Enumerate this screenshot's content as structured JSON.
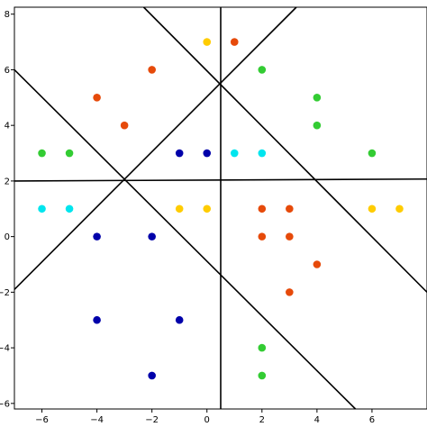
{
  "chart_data": {
    "type": "scatter",
    "title": "",
    "xlabel": "",
    "ylabel": "",
    "xlim": [
      -7,
      8
    ],
    "ylim": [
      -6.2,
      8.25
    ],
    "grid": false,
    "legend": "none",
    "x_ticks": [
      -6,
      -4,
      -2,
      0,
      2,
      4,
      6
    ],
    "x_tick_labels": [
      "−6",
      "−4",
      "−2",
      "0",
      "2",
      "4",
      "6"
    ],
    "y_ticks": [
      -6,
      -4,
      -2,
      0,
      2,
      4,
      6,
      8
    ],
    "y_tick_labels": [
      "−6",
      "−4",
      "−2",
      "0",
      "2",
      "4",
      "6",
      "8"
    ],
    "colors": {
      "blue": "#0000aa",
      "cyan": "#00e5ee",
      "green": "#33cc33",
      "yellow": "#ffcc00",
      "orange": "#e64a0a",
      "line": "#000000"
    },
    "points": [
      {
        "x": 0,
        "y": 7,
        "color": "yellow"
      },
      {
        "x": 1,
        "y": 7,
        "color": "orange"
      },
      {
        "x": -2,
        "y": 6,
        "color": "orange"
      },
      {
        "x": 2,
        "y": 6,
        "color": "green"
      },
      {
        "x": -4,
        "y": 5,
        "color": "orange"
      },
      {
        "x": 4,
        "y": 5,
        "color": "green"
      },
      {
        "x": -3,
        "y": 4,
        "color": "orange"
      },
      {
        "x": 4,
        "y": 4,
        "color": "green"
      },
      {
        "x": -6,
        "y": 3,
        "color": "green"
      },
      {
        "x": -5,
        "y": 3,
        "color": "green"
      },
      {
        "x": -1,
        "y": 3,
        "color": "blue"
      },
      {
        "x": 0,
        "y": 3,
        "color": "blue"
      },
      {
        "x": 1,
        "y": 3,
        "color": "cyan"
      },
      {
        "x": 2,
        "y": 3,
        "color": "cyan"
      },
      {
        "x": 6,
        "y": 3,
        "color": "green"
      },
      {
        "x": -6,
        "y": 1,
        "color": "cyan"
      },
      {
        "x": -5,
        "y": 1,
        "color": "cyan"
      },
      {
        "x": -1,
        "y": 1,
        "color": "yellow"
      },
      {
        "x": 0,
        "y": 1,
        "color": "yellow"
      },
      {
        "x": 2,
        "y": 1,
        "color": "orange"
      },
      {
        "x": 3,
        "y": 1,
        "color": "orange"
      },
      {
        "x": 6,
        "y": 1,
        "color": "yellow"
      },
      {
        "x": 7,
        "y": 1,
        "color": "yellow"
      },
      {
        "x": -4,
        "y": 0,
        "color": "blue"
      },
      {
        "x": -2,
        "y": 0,
        "color": "blue"
      },
      {
        "x": 2,
        "y": 0,
        "color": "orange"
      },
      {
        "x": 3,
        "y": 0,
        "color": "orange"
      },
      {
        "x": 4,
        "y": -1,
        "color": "orange"
      },
      {
        "x": 3,
        "y": -2,
        "color": "orange"
      },
      {
        "x": -4,
        "y": -3,
        "color": "blue"
      },
      {
        "x": -1,
        "y": -3,
        "color": "blue"
      },
      {
        "x": 2,
        "y": -4,
        "color": "green"
      },
      {
        "x": -2,
        "y": -5,
        "color": "blue"
      },
      {
        "x": 2,
        "y": -5,
        "color": "green"
      }
    ],
    "lines": [
      {
        "x1": 0.5,
        "y1": -6.2,
        "x2": 0.5,
        "y2": 8.25
      },
      {
        "x1": -7,
        "y1": 2.0,
        "x2": 8,
        "y2": 2.07
      },
      {
        "x1": -7,
        "y1": -1.9,
        "x2": 3.25,
        "y2": 8.25
      },
      {
        "x1": -7,
        "y1": 6.0,
        "x2": 5.4,
        "y2": -6.2
      },
      {
        "x1": -2.3,
        "y1": 8.25,
        "x2": 8,
        "y2": -2.0
      }
    ]
  }
}
